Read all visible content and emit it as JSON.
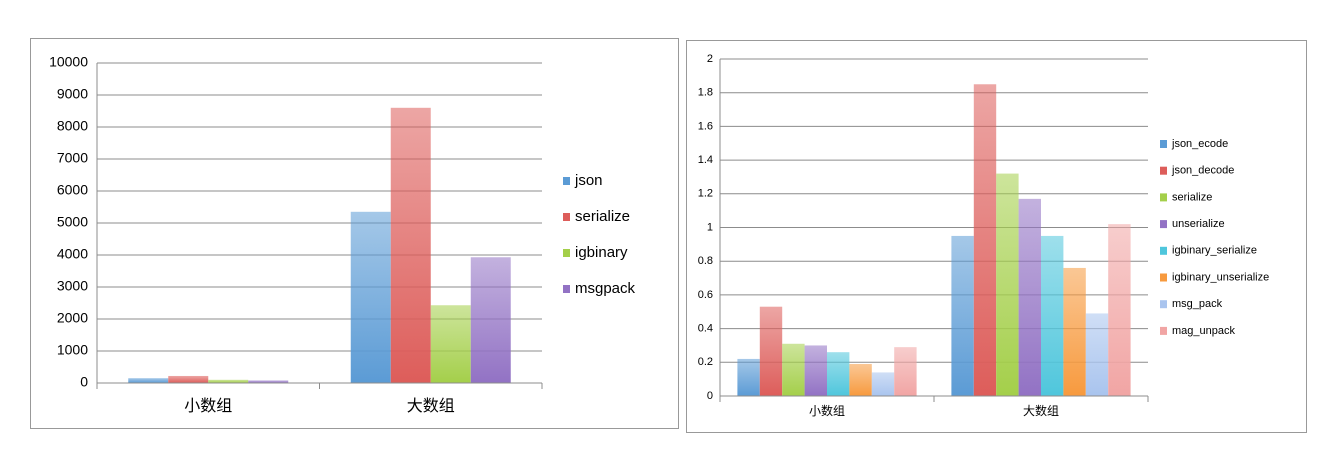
{
  "chart_data": [
    {
      "type": "bar",
      "categories": [
        "小数组",
        "大数组"
      ],
      "series": [
        {
          "name": "json",
          "color": "#5b9bd5",
          "values": [
            150,
            5350
          ]
        },
        {
          "name": "serialize",
          "color": "#dd5d5a",
          "values": [
            220,
            8600
          ]
        },
        {
          "name": "igbinary",
          "color": "#a4cf4a",
          "values": [
            100,
            2430
          ]
        },
        {
          "name": "msgpack",
          "color": "#9272c4",
          "values": [
            80,
            3930
          ]
        }
      ],
      "ylim": [
        0,
        10000
      ],
      "yticks": [
        0,
        1000,
        2000,
        3000,
        4000,
        5000,
        6000,
        7000,
        8000,
        9000,
        10000
      ],
      "grid": true,
      "legend": "right"
    },
    {
      "type": "bar",
      "categories": [
        "小数组",
        "大数组"
      ],
      "series": [
        {
          "name": "json_ecode",
          "color": "#5b9bd5",
          "values": [
            0.22,
            0.95
          ]
        },
        {
          "name": "json_decode",
          "color": "#dd5d5a",
          "values": [
            0.53,
            1.85
          ]
        },
        {
          "name": "serialize",
          "color": "#a4cf4a",
          "values": [
            0.31,
            1.32
          ]
        },
        {
          "name": "unserialize",
          "color": "#9272c4",
          "values": [
            0.3,
            1.17
          ]
        },
        {
          "name": "igbinary_serialize",
          "color": "#4fc6dc",
          "values": [
            0.26,
            0.95
          ]
        },
        {
          "name": "igbinary_unserialize",
          "color": "#f79a3e",
          "values": [
            0.19,
            0.76
          ]
        },
        {
          "name": "msg_pack",
          "color": "#a9c4ee",
          "values": [
            0.14,
            0.49
          ]
        },
        {
          "name": "mag_unpack",
          "color": "#f1a5a4",
          "values": [
            0.29,
            1.02
          ]
        }
      ],
      "ylim": [
        0,
        2
      ],
      "yticks": [
        0,
        0.2,
        0.4,
        0.6,
        0.8,
        1,
        1.2,
        1.4,
        1.6,
        1.8,
        2
      ],
      "grid": true,
      "legend": "right"
    }
  ]
}
